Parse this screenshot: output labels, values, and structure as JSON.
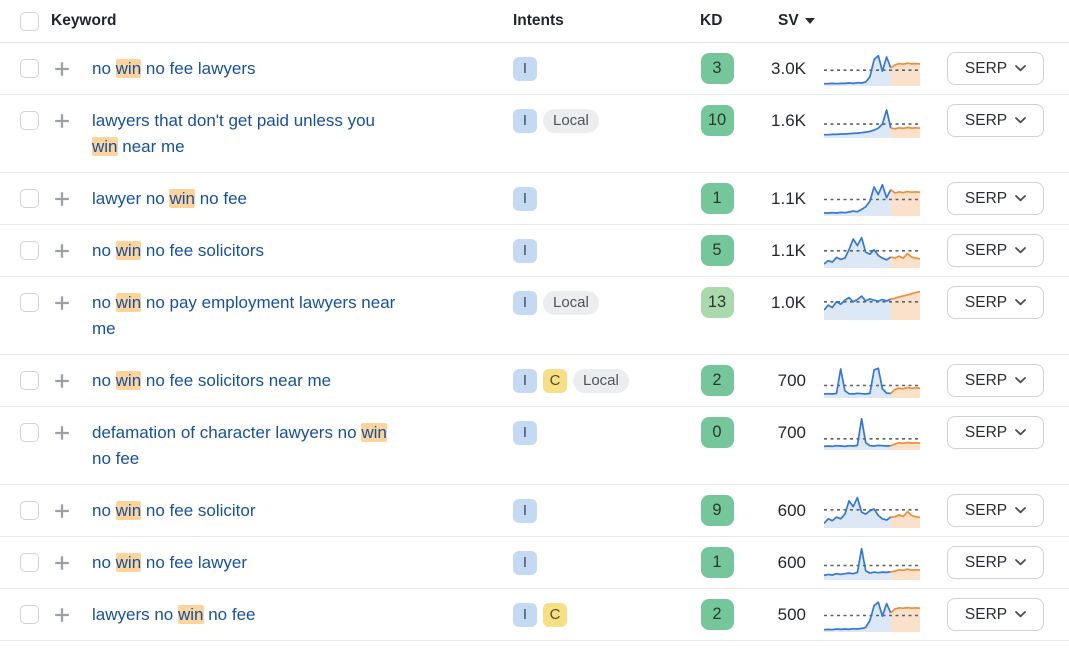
{
  "table": {
    "header": {
      "keyword": "Keyword",
      "intents": "Intents",
      "kd": "KD",
      "sv": "SV",
      "sv_sort": "desc"
    },
    "serp_button_label": "SERP",
    "colors": {
      "keyword_link": "#17509f",
      "keyword_highlight": "#fcd49c",
      "intent_informational_bg": "#c4daf3",
      "intent_commercial_bg": "#f6df85",
      "intent_local_bg": "#ecedee",
      "kd_green": "#76c69b",
      "kd_light_green": "#abd9ae",
      "spark_blue": "#3577d4",
      "spark_orange": "#ef8e3a"
    },
    "rows": [
      {
        "keyword": "no win no fee lawyers",
        "segments": [
          {
            "t": "no "
          },
          {
            "t": "win",
            "h": true
          },
          {
            "t": " no fee lawyers"
          }
        ],
        "intents": [
          {
            "label": "I",
            "type": "informational"
          }
        ],
        "kd": "3",
        "kd_variant": "green",
        "sv": "3.0K",
        "trend": {
          "points": [
            0.07,
            0.07,
            0.08,
            0.07,
            0.08,
            0.08,
            0.09,
            0.08,
            0.1,
            0.09,
            0.12,
            0.28,
            0.8,
            0.92,
            0.45,
            0.88,
            0.55,
            0.64,
            0.68,
            0.66,
            0.69,
            0.67,
            0.68,
            0.67
          ],
          "split": 16,
          "baseline": 0.48
        }
      },
      {
        "keyword": "lawyers that don't get paid unless you win near me",
        "segments": [
          {
            "t": "lawyers that don't get paid unless you"
          },
          {
            "br": true
          },
          {
            "t": "win",
            "h": true
          },
          {
            "t": " near me"
          }
        ],
        "intents": [
          {
            "label": "I",
            "type": "informational"
          },
          {
            "label": "Local",
            "type": "local"
          }
        ],
        "kd": "10",
        "kd_variant": "green",
        "sv": "1.6K",
        "trend": {
          "points": [
            0.1,
            0.1,
            0.11,
            0.11,
            0.12,
            0.12,
            0.13,
            0.14,
            0.15,
            0.16,
            0.18,
            0.2,
            0.24,
            0.3,
            0.42,
            0.85,
            0.3,
            0.28,
            0.31,
            0.29,
            0.32,
            0.3,
            0.31,
            0.3
          ],
          "split": 16,
          "baseline": 0.42
        }
      },
      {
        "keyword": "lawyer no win no fee",
        "segments": [
          {
            "t": "lawyer no "
          },
          {
            "t": "win",
            "h": true
          },
          {
            "t": " no fee"
          }
        ],
        "intents": [
          {
            "label": "I",
            "type": "informational"
          }
        ],
        "kd": "1",
        "kd_variant": "green",
        "sv": "1.1K",
        "trend": {
          "points": [
            0.09,
            0.09,
            0.1,
            0.09,
            0.11,
            0.1,
            0.12,
            0.15,
            0.13,
            0.2,
            0.28,
            0.45,
            0.88,
            0.65,
            0.95,
            0.55,
            0.8,
            0.7,
            0.73,
            0.71,
            0.74,
            0.72,
            0.73,
            0.72
          ],
          "split": 16,
          "baseline": 0.5
        }
      },
      {
        "keyword": "no win no fee solicitors",
        "segments": [
          {
            "t": "no "
          },
          {
            "t": "win",
            "h": true
          },
          {
            "t": " no fee solicitors"
          }
        ],
        "intents": [
          {
            "label": "I",
            "type": "informational"
          }
        ],
        "kd": "5",
        "kd_variant": "green",
        "sv": "1.1K",
        "trend": {
          "points": [
            0.12,
            0.22,
            0.18,
            0.32,
            0.26,
            0.3,
            0.55,
            0.88,
            0.68,
            0.92,
            0.48,
            0.42,
            0.55,
            0.38,
            0.3,
            0.25,
            0.33,
            0.3,
            0.36,
            0.3,
            0.44,
            0.33,
            0.3,
            0.28
          ],
          "split": 16,
          "baseline": 0.52
        }
      },
      {
        "keyword": "no win no pay employment lawyers near me",
        "segments": [
          {
            "t": "no "
          },
          {
            "t": "win",
            "h": true
          },
          {
            "t": " no pay employment lawyers near"
          },
          {
            "br": true
          },
          {
            "t": "me"
          }
        ],
        "intents": [
          {
            "label": "I",
            "type": "informational"
          },
          {
            "label": "Local",
            "type": "local"
          }
        ],
        "kd": "13",
        "kd_variant": "light-green",
        "sv": "1.0K",
        "trend": {
          "points": [
            0.3,
            0.45,
            0.38,
            0.55,
            0.48,
            0.6,
            0.68,
            0.55,
            0.62,
            0.72,
            0.58,
            0.64,
            0.6,
            0.57,
            0.62,
            0.58,
            0.63,
            0.66,
            0.7,
            0.73,
            0.76,
            0.8,
            0.83,
            0.86
          ],
          "split": 16,
          "baseline": 0.55
        }
      },
      {
        "keyword": "no win no fee solicitors near me",
        "segments": [
          {
            "t": "no "
          },
          {
            "t": "win",
            "h": true
          },
          {
            "t": " no fee solicitors near me"
          }
        ],
        "intents": [
          {
            "label": "I",
            "type": "informational"
          },
          {
            "label": "C",
            "type": "commercial"
          },
          {
            "label": "Local",
            "type": "local"
          }
        ],
        "kd": "2",
        "kd_variant": "green",
        "sv": "700",
        "trend": {
          "points": [
            0.12,
            0.13,
            0.12,
            0.14,
            0.88,
            0.22,
            0.13,
            0.12,
            0.14,
            0.13,
            0.12,
            0.14,
            0.85,
            0.9,
            0.28,
            0.15,
            0.14,
            0.26,
            0.3,
            0.28,
            0.32,
            0.29,
            0.31,
            0.3
          ],
          "split": 16,
          "baseline": 0.38
        }
      },
      {
        "keyword": "defamation of character lawyers no win no fee",
        "segments": [
          {
            "t": "defamation of character lawyers no "
          },
          {
            "t": "win",
            "h": true
          },
          {
            "br": true
          },
          {
            "t": "no fee"
          }
        ],
        "intents": [
          {
            "label": "I",
            "type": "informational"
          }
        ],
        "kd": "0",
        "kd_variant": "green",
        "sv": "700",
        "trend": {
          "points": [
            0.11,
            0.12,
            0.11,
            0.13,
            0.12,
            0.11,
            0.13,
            0.12,
            0.14,
            0.95,
            0.22,
            0.13,
            0.12,
            0.14,
            0.13,
            0.12,
            0.13,
            0.18,
            0.22,
            0.2,
            0.23,
            0.21,
            0.22,
            0.21
          ],
          "split": 16,
          "baseline": 0.34
        }
      },
      {
        "keyword": "no win no fee solicitor",
        "segments": [
          {
            "t": "no "
          },
          {
            "t": "win",
            "h": true
          },
          {
            "t": " no fee solicitor"
          }
        ],
        "intents": [
          {
            "label": "I",
            "type": "informational"
          }
        ],
        "kd": "9",
        "kd_variant": "green",
        "sv": "600",
        "trend": {
          "points": [
            0.14,
            0.28,
            0.22,
            0.33,
            0.28,
            0.42,
            0.82,
            0.65,
            0.92,
            0.48,
            0.42,
            0.52,
            0.58,
            0.38,
            0.28,
            0.24,
            0.33,
            0.34,
            0.4,
            0.35,
            0.5,
            0.38,
            0.34,
            0.32
          ],
          "split": 16,
          "baseline": 0.55
        }
      },
      {
        "keyword": "no win no fee lawyer",
        "segments": [
          {
            "t": "no "
          },
          {
            "t": "win",
            "h": true
          },
          {
            "t": " no fee lawyer"
          }
        ],
        "intents": [
          {
            "label": "I",
            "type": "informational"
          }
        ],
        "kd": "1",
        "kd_variant": "green",
        "sv": "600",
        "trend": {
          "points": [
            0.14,
            0.17,
            0.15,
            0.19,
            0.17,
            0.19,
            0.21,
            0.19,
            0.23,
            0.95,
            0.28,
            0.21,
            0.24,
            0.22,
            0.24,
            0.23,
            0.25,
            0.27,
            0.31,
            0.29,
            0.33,
            0.3,
            0.31,
            0.3
          ],
          "split": 16,
          "baseline": 0.44
        }
      },
      {
        "keyword": "lawyers no win no fee",
        "segments": [
          {
            "t": "lawyers no "
          },
          {
            "t": "win",
            "h": true
          },
          {
            "t": " no fee"
          }
        ],
        "intents": [
          {
            "label": "I",
            "type": "informational"
          },
          {
            "label": "C",
            "type": "commercial"
          }
        ],
        "kd": "2",
        "kd_variant": "green",
        "sv": "500",
        "trend": {
          "points": [
            0.07,
            0.08,
            0.07,
            0.09,
            0.08,
            0.09,
            0.08,
            0.1,
            0.09,
            0.11,
            0.14,
            0.35,
            0.8,
            0.9,
            0.48,
            0.86,
            0.58,
            0.7,
            0.73,
            0.72,
            0.74,
            0.72,
            0.73,
            0.72
          ],
          "split": 16,
          "baseline": 0.5
        }
      }
    ]
  }
}
